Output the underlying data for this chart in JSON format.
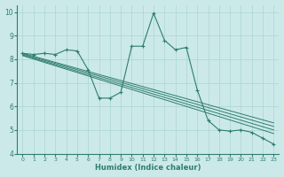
{
  "xlabel": "Humidex (Indice chaleur)",
  "xlim": [
    -0.5,
    23.5
  ],
  "ylim": [
    4,
    10.3
  ],
  "xticks": [
    0,
    1,
    2,
    3,
    4,
    5,
    6,
    7,
    8,
    9,
    10,
    11,
    12,
    13,
    14,
    15,
    16,
    17,
    18,
    19,
    20,
    21,
    22,
    23
  ],
  "yticks": [
    4,
    5,
    6,
    7,
    8,
    9,
    10
  ],
  "bg_color": "#cce9e9",
  "grid_color": "#b0d8d8",
  "line_color": "#2e7d6e",
  "main_data_x": [
    0,
    1,
    2,
    3,
    4,
    5,
    6,
    7,
    8,
    9,
    10,
    11,
    12,
    13,
    14,
    15,
    16,
    17,
    18,
    19,
    20,
    21,
    22,
    23
  ],
  "main_data_y": [
    8.25,
    8.2,
    8.25,
    8.2,
    8.4,
    8.35,
    7.55,
    6.35,
    6.35,
    6.6,
    8.55,
    8.55,
    9.95,
    8.8,
    8.4,
    8.5,
    6.7,
    5.4,
    5.0,
    4.95,
    5.0,
    4.9,
    4.65,
    4.4
  ],
  "trend_lines": [
    {
      "x0": 0,
      "y0": 8.25,
      "x1": 23,
      "y1": 5.3
    },
    {
      "x0": 0,
      "y0": 8.22,
      "x1": 23,
      "y1": 5.15
    },
    {
      "x0": 0,
      "y0": 8.18,
      "x1": 23,
      "y1": 5.0
    },
    {
      "x0": 0,
      "y0": 8.15,
      "x1": 23,
      "y1": 4.85
    }
  ]
}
